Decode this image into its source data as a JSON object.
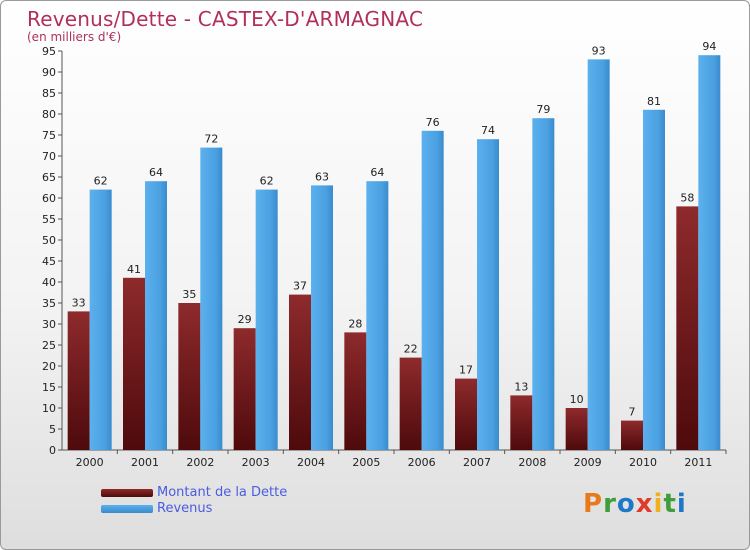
{
  "title": "Revenus/Dette - CASTEX-D'ARMAGNAC",
  "subtitle": "(en milliers d'€)",
  "logo_text": "Proxiti",
  "colors": {
    "dette": "#7a1a1f",
    "revenus": "#4ba3e3",
    "title": "#b0305a",
    "legend_text": "#4a5ce0"
  },
  "chart_data": {
    "type": "bar",
    "categories": [
      "2000",
      "2001",
      "2002",
      "2003",
      "2004",
      "2005",
      "2006",
      "2007",
      "2008",
      "2009",
      "2010",
      "2011"
    ],
    "series": [
      {
        "name": "Montant de la Dette",
        "values": [
          33,
          41,
          35,
          29,
          37,
          28,
          22,
          17,
          13,
          10,
          7,
          58
        ]
      },
      {
        "name": "Revenus",
        "values": [
          62,
          64,
          72,
          62,
          63,
          64,
          76,
          74,
          79,
          93,
          81,
          94
        ]
      }
    ],
    "ylim": [
      0,
      95
    ],
    "yticks": [
      0,
      5,
      10,
      15,
      20,
      25,
      30,
      35,
      40,
      45,
      50,
      55,
      60,
      65,
      70,
      75,
      80,
      85,
      90,
      95
    ],
    "legend_position": "bottom-left",
    "grid": false
  }
}
